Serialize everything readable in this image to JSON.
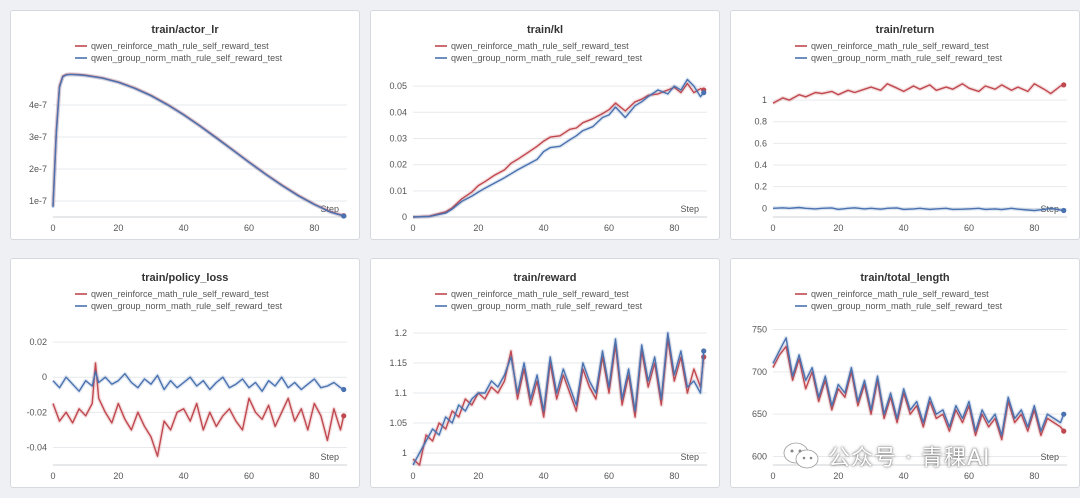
{
  "colors": {
    "series_0": "#c0484f",
    "series_1": "#4a72b0",
    "grid": "#e7e9ec",
    "text": "#555555"
  },
  "watermark": {
    "text": "公众号 · 青稞AI",
    "icon": "wechat-icon"
  },
  "chart_data": [
    {
      "type": "line",
      "title": "train/actor_lr",
      "xlabel": "Step",
      "xlim": [
        0,
        90
      ],
      "xticks": [
        0,
        20,
        40,
        60,
        80
      ],
      "xtick_labels": [
        "0",
        "20",
        "40",
        "60",
        "80"
      ],
      "ylim": [
        5e-08,
        5e-07
      ],
      "yticks": [
        1e-07,
        2e-07,
        3e-07,
        4e-07
      ],
      "ytick_labels": [
        "1e-7",
        "2e-7",
        "3e-7",
        "4e-7"
      ],
      "x": [
        0,
        1,
        2,
        3,
        4,
        5,
        6,
        8,
        10,
        15,
        20,
        25,
        30,
        35,
        40,
        45,
        50,
        55,
        60,
        65,
        70,
        75,
        80,
        85,
        89
      ],
      "series": [
        {
          "name": "qwen_reinforce_math_rule_self_reward_test",
          "values": [
            8.5e-08,
            3.2e-07,
            4.6e-07,
            4.9e-07,
            4.95e-07,
            4.96e-07,
            4.96e-07,
            4.95e-07,
            4.93e-07,
            4.85e-07,
            4.72e-07,
            4.53e-07,
            4.3e-07,
            4.02e-07,
            3.7e-07,
            3.35e-07,
            2.98e-07,
            2.6e-07,
            2.22e-07,
            1.85e-07,
            1.5e-07,
            1.18e-07,
            9e-08,
            6.6e-08,
            5.4e-08
          ]
        },
        {
          "name": "qwen_group_norm_math_rule_self_reward_test",
          "values": [
            8e-08,
            3.1e-07,
            4.55e-07,
            4.88e-07,
            4.94e-07,
            4.95e-07,
            4.95e-07,
            4.94e-07,
            4.92e-07,
            4.84e-07,
            4.71e-07,
            4.52e-07,
            4.29e-07,
            4.01e-07,
            3.69e-07,
            3.34e-07,
            2.97e-07,
            2.59e-07,
            2.21e-07,
            1.84e-07,
            1.49e-07,
            1.17e-07,
            8.9e-08,
            6.5e-08,
            5.3e-08
          ]
        }
      ]
    },
    {
      "type": "line",
      "title": "train/kl",
      "xlabel": "Step",
      "xlim": [
        0,
        90
      ],
      "xticks": [
        0,
        20,
        40,
        60,
        80
      ],
      "xtick_labels": [
        "0",
        "20",
        "40",
        "60",
        "80"
      ],
      "ylim": [
        0,
        0.055
      ],
      "yticks": [
        0,
        0.01,
        0.02,
        0.03,
        0.04,
        0.05
      ],
      "ytick_labels": [
        "0",
        "0.01",
        "0.02",
        "0.03",
        "0.04",
        "0.05"
      ],
      "x": [
        0,
        5,
        10,
        12,
        15,
        18,
        20,
        22,
        25,
        28,
        30,
        32,
        35,
        38,
        40,
        42,
        45,
        48,
        50,
        52,
        55,
        58,
        60,
        62,
        65,
        68,
        70,
        72,
        75,
        78,
        80,
        82,
        84,
        86,
        88,
        89
      ],
      "series": [
        {
          "name": "qwen_reinforce_math_rule_self_reward_test",
          "values": [
            0,
            0.0003,
            0.002,
            0.0035,
            0.007,
            0.0095,
            0.012,
            0.0135,
            0.016,
            0.018,
            0.0205,
            0.022,
            0.0245,
            0.027,
            0.029,
            0.0305,
            0.031,
            0.0335,
            0.034,
            0.036,
            0.0375,
            0.0395,
            0.041,
            0.0435,
            0.0405,
            0.044,
            0.045,
            0.0465,
            0.047,
            0.0485,
            0.0495,
            0.0475,
            0.051,
            0.0475,
            0.049,
            0.0485
          ]
        },
        {
          "name": "qwen_group_norm_math_rule_self_reward_test",
          "values": [
            0,
            0.0002,
            0.0015,
            0.003,
            0.006,
            0.008,
            0.0095,
            0.011,
            0.013,
            0.015,
            0.0165,
            0.018,
            0.02,
            0.022,
            0.025,
            0.0265,
            0.027,
            0.0295,
            0.031,
            0.033,
            0.0345,
            0.038,
            0.039,
            0.042,
            0.038,
            0.0425,
            0.044,
            0.046,
            0.0485,
            0.047,
            0.05,
            0.0485,
            0.0525,
            0.05,
            0.046,
            0.0475
          ]
        }
      ]
    },
    {
      "type": "line",
      "title": "train/return",
      "xlabel": "Step",
      "xlim": [
        0,
        90
      ],
      "xticks": [
        0,
        20,
        40,
        60,
        80
      ],
      "xtick_labels": [
        "0",
        "20",
        "40",
        "60",
        "80"
      ],
      "ylim": [
        -0.08,
        1.25
      ],
      "yticks": [
        0,
        0.2,
        0.4,
        0.6,
        0.8,
        1
      ],
      "ytick_labels": [
        "0",
        "0.2",
        "0.4",
        "0.6",
        "0.8",
        "1"
      ],
      "x": [
        0,
        3,
        5,
        8,
        10,
        13,
        15,
        18,
        20,
        23,
        25,
        28,
        30,
        33,
        35,
        38,
        40,
        43,
        45,
        48,
        50,
        53,
        55,
        58,
        60,
        63,
        65,
        68,
        70,
        73,
        75,
        78,
        80,
        83,
        85,
        88,
        89
      ],
      "series": [
        {
          "name": "qwen_reinforce_math_rule_self_reward_test",
          "values": [
            0.97,
            1.02,
            1.0,
            1.05,
            1.03,
            1.07,
            1.06,
            1.08,
            1.05,
            1.09,
            1.07,
            1.1,
            1.12,
            1.09,
            1.15,
            1.11,
            1.08,
            1.13,
            1.1,
            1.14,
            1.09,
            1.12,
            1.1,
            1.15,
            1.11,
            1.08,
            1.13,
            1.1,
            1.14,
            1.09,
            1.12,
            1.08,
            1.15,
            1.1,
            1.06,
            1.13,
            1.14
          ]
        },
        {
          "name": "qwen_group_norm_math_rule_self_reward_test",
          "values": [
            0.0,
            0.005,
            0.0,
            0.008,
            0.0,
            -0.005,
            0.0,
            0.004,
            -0.01,
            0.0,
            0.005,
            -0.005,
            0.0,
            -0.008,
            0.0,
            0.004,
            -0.01,
            -0.005,
            0.0,
            -0.01,
            -0.005,
            0.0,
            -0.01,
            -0.008,
            -0.005,
            0.0,
            -0.01,
            -0.005,
            -0.012,
            0.0,
            -0.008,
            -0.015,
            -0.02,
            -0.01,
            0.0,
            -0.015,
            -0.02
          ]
        }
      ]
    },
    {
      "type": "line",
      "title": "train/policy_loss",
      "xlabel": "Step",
      "xlim": [
        0,
        90
      ],
      "xticks": [
        0,
        20,
        40,
        60,
        80
      ],
      "xtick_labels": [
        "0",
        "20",
        "40",
        "60",
        "80"
      ],
      "ylim": [
        -0.05,
        0.032
      ],
      "yticks": [
        -0.04,
        -0.02,
        0,
        0.02
      ],
      "ytick_labels": [
        "-0.04",
        "-0.02",
        "0",
        "0.02"
      ],
      "x": [
        0,
        2,
        4,
        6,
        8,
        10,
        12,
        13,
        14,
        16,
        18,
        20,
        22,
        24,
        26,
        28,
        30,
        32,
        34,
        36,
        38,
        40,
        42,
        44,
        46,
        48,
        50,
        52,
        54,
        56,
        58,
        60,
        62,
        64,
        66,
        68,
        70,
        72,
        74,
        76,
        78,
        80,
        82,
        84,
        86,
        88,
        89
      ],
      "series": [
        {
          "name": "qwen_reinforce_math_rule_self_reward_test",
          "values": [
            -0.015,
            -0.025,
            -0.02,
            -0.026,
            -0.018,
            -0.022,
            -0.015,
            0.008,
            -0.012,
            -0.02,
            -0.026,
            -0.015,
            -0.024,
            -0.03,
            -0.02,
            -0.028,
            -0.034,
            -0.045,
            -0.025,
            -0.03,
            -0.02,
            -0.018,
            -0.025,
            -0.015,
            -0.03,
            -0.02,
            -0.028,
            -0.022,
            -0.018,
            -0.025,
            -0.03,
            -0.012,
            -0.02,
            -0.024,
            -0.016,
            -0.028,
            -0.02,
            -0.012,
            -0.025,
            -0.018,
            -0.03,
            -0.015,
            -0.022,
            -0.036,
            -0.018,
            -0.03,
            -0.022
          ]
        },
        {
          "name": "qwen_group_norm_math_rule_self_reward_test",
          "values": [
            -0.002,
            -0.006,
            0.0,
            -0.004,
            -0.008,
            -0.002,
            -0.005,
            0.003,
            -0.003,
            0.0,
            -0.004,
            -0.002,
            0.002,
            -0.003,
            -0.006,
            -0.001,
            -0.004,
            0.001,
            -0.007,
            -0.002,
            -0.006,
            -0.003,
            0.0,
            -0.005,
            -0.002,
            -0.007,
            -0.003,
            0.0,
            -0.006,
            -0.004,
            -0.001,
            -0.006,
            -0.003,
            -0.008,
            -0.002,
            -0.005,
            0.0,
            -0.006,
            -0.003,
            -0.007,
            -0.004,
            -0.001,
            -0.006,
            -0.005,
            -0.003,
            -0.006,
            -0.007
          ]
        }
      ]
    },
    {
      "type": "line",
      "title": "train/reward",
      "xlabel": "Step",
      "xlim": [
        0,
        90
      ],
      "xticks": [
        0,
        20,
        40,
        60,
        80
      ],
      "xtick_labels": [
        "0",
        "20",
        "40",
        "60",
        "80"
      ],
      "ylim": [
        0.98,
        1.22
      ],
      "yticks": [
        1,
        1.05,
        1.1,
        1.15,
        1.2
      ],
      "ytick_labels": [
        "1",
        "1.05",
        "1.1",
        "1.15",
        "1.2"
      ],
      "x": [
        0,
        2,
        4,
        6,
        8,
        10,
        12,
        14,
        16,
        18,
        20,
        22,
        24,
        26,
        28,
        30,
        32,
        34,
        36,
        38,
        40,
        42,
        44,
        46,
        48,
        50,
        52,
        54,
        56,
        58,
        60,
        62,
        64,
        66,
        68,
        70,
        72,
        74,
        76,
        78,
        80,
        82,
        84,
        86,
        88,
        89
      ],
      "series": [
        {
          "name": "qwen_reinforce_math_rule_self_reward_test",
          "values": [
            0.99,
            0.98,
            1.03,
            1.02,
            1.05,
            1.04,
            1.07,
            1.06,
            1.09,
            1.08,
            1.1,
            1.09,
            1.11,
            1.1,
            1.12,
            1.17,
            1.09,
            1.14,
            1.08,
            1.12,
            1.06,
            1.15,
            1.09,
            1.13,
            1.1,
            1.07,
            1.14,
            1.11,
            1.09,
            1.16,
            1.1,
            1.18,
            1.08,
            1.13,
            1.06,
            1.17,
            1.11,
            1.15,
            1.08,
            1.19,
            1.12,
            1.16,
            1.1,
            1.14,
            1.11,
            1.16
          ]
        },
        {
          "name": "qwen_group_norm_math_rule_self_reward_test",
          "values": [
            0.98,
            1.0,
            1.02,
            1.04,
            1.03,
            1.06,
            1.05,
            1.08,
            1.07,
            1.09,
            1.1,
            1.1,
            1.12,
            1.11,
            1.13,
            1.16,
            1.1,
            1.15,
            1.09,
            1.13,
            1.07,
            1.16,
            1.1,
            1.14,
            1.11,
            1.08,
            1.15,
            1.12,
            1.1,
            1.17,
            1.11,
            1.19,
            1.09,
            1.14,
            1.07,
            1.18,
            1.12,
            1.16,
            1.09,
            1.2,
            1.13,
            1.17,
            1.11,
            1.12,
            1.1,
            1.17
          ]
        }
      ]
    },
    {
      "type": "line",
      "title": "train/total_length",
      "xlabel": "Step",
      "xlim": [
        0,
        90
      ],
      "xticks": [
        0,
        20,
        40,
        60,
        80
      ],
      "xtick_labels": [
        "0",
        "20",
        "40",
        "60",
        "80"
      ],
      "ylim": [
        590,
        760
      ],
      "yticks": [
        600,
        650,
        700,
        750
      ],
      "ytick_labels": [
        "600",
        "650",
        "700",
        "750"
      ],
      "x": [
        0,
        2,
        4,
        6,
        8,
        10,
        12,
        14,
        16,
        18,
        20,
        22,
        24,
        26,
        28,
        30,
        32,
        34,
        36,
        38,
        40,
        42,
        44,
        46,
        48,
        50,
        52,
        54,
        56,
        58,
        60,
        62,
        64,
        66,
        68,
        70,
        72,
        74,
        76,
        78,
        80,
        82,
        84,
        86,
        88,
        89
      ],
      "series": [
        {
          "name": "qwen_reinforce_math_rule_self_reward_test",
          "values": [
            705,
            720,
            730,
            690,
            715,
            680,
            700,
            665,
            690,
            655,
            680,
            670,
            700,
            660,
            685,
            650,
            690,
            645,
            670,
            640,
            675,
            650,
            660,
            635,
            665,
            645,
            650,
            630,
            655,
            640,
            660,
            625,
            650,
            635,
            645,
            620,
            665,
            640,
            650,
            630,
            655,
            625,
            645,
            640,
            635,
            630
          ]
        },
        {
          "name": "qwen_group_norm_math_rule_self_reward_test",
          "values": [
            710,
            725,
            740,
            695,
            720,
            690,
            705,
            670,
            695,
            660,
            685,
            675,
            705,
            665,
            690,
            655,
            695,
            650,
            675,
            645,
            680,
            655,
            665,
            640,
            670,
            650,
            655,
            635,
            660,
            645,
            665,
            630,
            655,
            640,
            650,
            625,
            670,
            645,
            655,
            635,
            660,
            630,
            650,
            645,
            640,
            650
          ]
        }
      ]
    }
  ]
}
